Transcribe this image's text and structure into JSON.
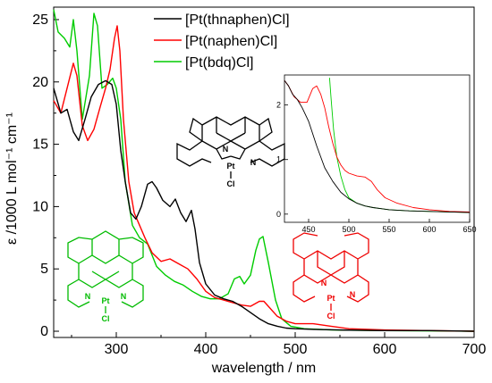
{
  "chart_data": {
    "type": "line",
    "xlabel": "wavelength / nm",
    "ylabel": "ε /1000 L mol⁻¹ cm⁻¹",
    "xlim": [
      230,
      700
    ],
    "ylim": [
      -0.5,
      26
    ],
    "xticks": [
      300,
      400,
      500,
      600,
      700
    ],
    "yticks": [
      0,
      5,
      10,
      15,
      20,
      25
    ],
    "grid": false,
    "legend": "top-center",
    "series": [
      {
        "name": "[Pt(thnaphen)Cl]",
        "color": "#000000",
        "x": [
          230,
          238,
          245,
          252,
          258,
          265,
          272,
          280,
          288,
          295,
          300,
          305,
          310,
          316,
          322,
          328,
          335,
          340,
          345,
          352,
          360,
          366,
          372,
          378,
          384,
          388,
          393,
          400,
          410,
          420,
          430,
          440,
          450,
          460,
          470,
          480,
          490,
          500,
          520,
          550,
          600,
          650,
          700
        ],
        "y": [
          19.5,
          17.5,
          17.8,
          16.0,
          15.3,
          17.0,
          18.8,
          19.8,
          20.1,
          19.8,
          18.2,
          14.5,
          12.0,
          9.5,
          9.0,
          10.0,
          11.8,
          12.0,
          11.5,
          10.5,
          10.0,
          10.6,
          9.5,
          8.8,
          9.7,
          8.2,
          5.5,
          3.8,
          2.9,
          2.6,
          2.4,
          2.0,
          1.5,
          1.0,
          0.6,
          0.4,
          0.25,
          0.2,
          0.15,
          0.1,
          0.05,
          0.05,
          0.0
        ]
      },
      {
        "name": "[Pt(naphen)Cl]",
        "color": "#ff0000",
        "x": [
          230,
          238,
          245,
          252,
          256,
          262,
          268,
          275,
          282,
          288,
          293,
          298,
          301,
          304,
          308,
          314,
          320,
          326,
          332,
          340,
          350,
          360,
          370,
          380,
          390,
          400,
          410,
          420,
          430,
          440,
          450,
          460,
          465,
          470,
          480,
          490,
          500,
          520,
          540,
          560,
          600,
          650,
          700
        ],
        "y": [
          18.5,
          17.5,
          19.5,
          21.5,
          20.5,
          16.5,
          15.3,
          16.2,
          18.0,
          19.5,
          21.0,
          23.5,
          24.5,
          22.5,
          17.0,
          12.0,
          9.5,
          8.5,
          7.5,
          6.3,
          5.6,
          5.8,
          5.4,
          5.0,
          4.2,
          3.2,
          2.7,
          2.5,
          2.3,
          2.1,
          2.0,
          2.4,
          2.4,
          2.0,
          1.2,
          0.8,
          0.6,
          0.6,
          0.4,
          0.2,
          0.1,
          0.05,
          0.0
        ]
      },
      {
        "name": "[Pt(bdq)Cl]",
        "color": "#00cc00",
        "x": [
          230,
          235,
          242,
          248,
          252,
          256,
          262,
          270,
          275,
          279,
          284,
          290,
          296,
          300,
          305,
          310,
          318,
          326,
          335,
          345,
          355,
          365,
          375,
          385,
          395,
          405,
          415,
          425,
          432,
          438,
          443,
          450,
          456,
          460,
          464,
          470,
          478,
          485,
          495,
          510,
          540,
          600,
          700
        ],
        "y": [
          25.8,
          24.0,
          23.5,
          22.8,
          25.0,
          22.5,
          17.0,
          20.5,
          25.5,
          24.5,
          19.5,
          19.8,
          20.3,
          19.5,
          17.0,
          12.0,
          8.5,
          7.5,
          7.0,
          5.2,
          4.5,
          4.0,
          3.7,
          3.2,
          2.8,
          2.6,
          2.6,
          3.0,
          4.2,
          4.4,
          3.8,
          4.5,
          6.5,
          7.4,
          7.6,
          5.5,
          2.5,
          1.0,
          0.4,
          0.2,
          0.1,
          0.05,
          0.0
        ]
      }
    ],
    "inset": {
      "type": "line",
      "xlim": [
        420,
        650
      ],
      "ylim": [
        -0.15,
        2.55
      ],
      "xticks": [
        450,
        500,
        550,
        600,
        650
      ],
      "yticks": [
        0,
        1,
        2
      ],
      "series": [
        {
          "name": "[Pt(thnaphen)Cl]",
          "color": "#000000",
          "x": [
            420,
            425,
            430,
            436,
            442,
            450,
            460,
            470,
            480,
            490,
            500,
            510,
            520,
            530,
            540,
            550,
            575,
            600,
            625,
            650
          ],
          "y": [
            2.45,
            2.35,
            2.2,
            2.1,
            1.95,
            1.7,
            1.25,
            0.85,
            0.6,
            0.4,
            0.28,
            0.2,
            0.15,
            0.12,
            0.1,
            0.08,
            0.06,
            0.05,
            0.04,
            0.03
          ]
        },
        {
          "name": "[Pt(naphen)Cl]",
          "color": "#ff0000",
          "x": [
            420,
            425,
            432,
            440,
            448,
            455,
            460,
            465,
            470,
            475,
            480,
            485,
            490,
            495,
            500,
            510,
            520,
            528,
            535,
            545,
            560,
            580,
            600,
            625,
            650
          ],
          "y": [
            2.45,
            2.35,
            2.15,
            2.05,
            2.05,
            2.3,
            2.35,
            2.2,
            1.95,
            1.6,
            1.3,
            1.05,
            0.9,
            0.8,
            0.75,
            0.7,
            0.68,
            0.6,
            0.45,
            0.3,
            0.2,
            0.12,
            0.08,
            0.05,
            0.04
          ]
        },
        {
          "name": "[Pt(bdq)Cl]",
          "color": "#00cc00",
          "x": [
            476,
            478,
            481,
            485,
            490,
            495,
            500,
            510,
            520,
            530,
            540,
            550,
            575,
            600,
            625,
            650
          ],
          "y": [
            2.5,
            2.1,
            1.55,
            1.05,
            0.7,
            0.45,
            0.3,
            0.2,
            0.15,
            0.12,
            0.1,
            0.08,
            0.06,
            0.05,
            0.04,
            0.03
          ]
        }
      ]
    },
    "molecule_labels": {
      "pt": "Pt",
      "n": "N",
      "cl": "Cl"
    }
  }
}
